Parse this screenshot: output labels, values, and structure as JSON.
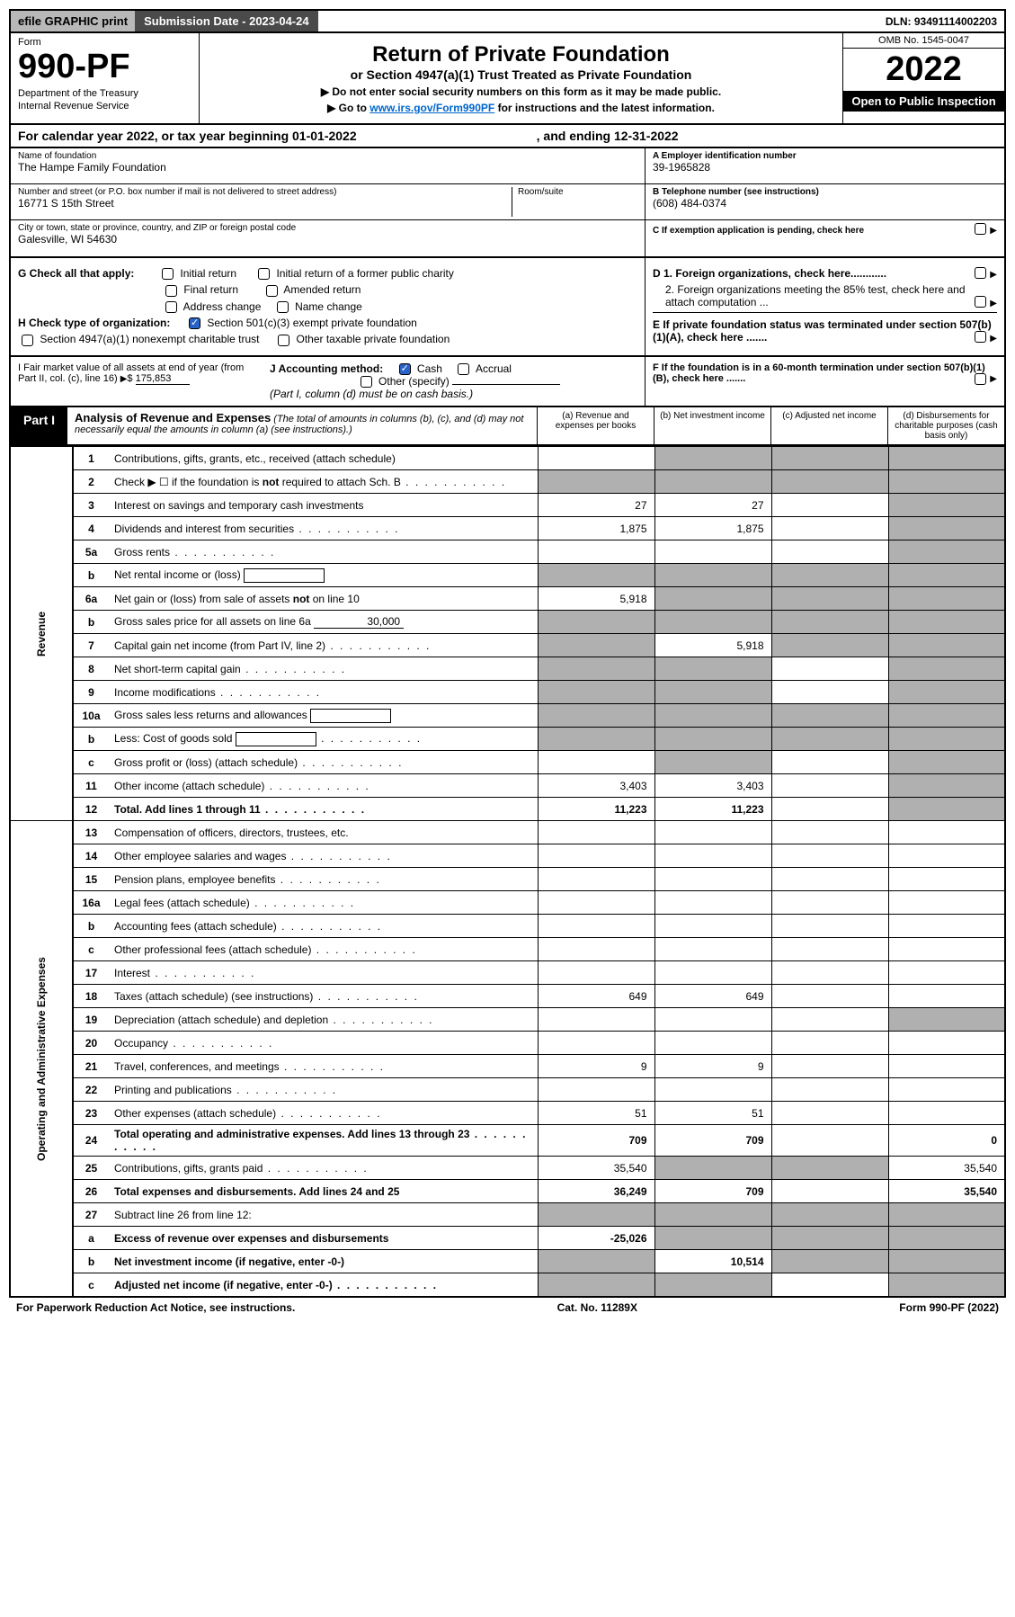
{
  "topbar": {
    "efile": "efile GRAPHIC print",
    "submission_label": "Submission Date - 2023-04-24",
    "dln": "DLN: 93491114002203"
  },
  "header": {
    "form_label": "Form",
    "form_number": "990-PF",
    "dept1": "Department of the Treasury",
    "dept2": "Internal Revenue Service",
    "title": "Return of Private Foundation",
    "subtitle": "or Section 4947(a)(1) Trust Treated as Private Foundation",
    "instr1": "▶ Do not enter social security numbers on this form as it may be made public.",
    "instr2_pre": "▶ Go to ",
    "instr2_link": "www.irs.gov/Form990PF",
    "instr2_post": " for instructions and the latest information.",
    "omb": "OMB No. 1545-0047",
    "year": "2022",
    "inspection": "Open to Public Inspection"
  },
  "calyear": {
    "text": "For calendar year 2022, or tax year beginning 01-01-2022",
    "ending": ", and ending 12-31-2022"
  },
  "entity": {
    "name_label": "Name of foundation",
    "name": "The Hampe Family Foundation",
    "addr_label": "Number and street (or P.O. box number if mail is not delivered to street address)",
    "addr": "16771 S 15th Street",
    "room_label": "Room/suite",
    "city_label": "City or town, state or province, country, and ZIP or foreign postal code",
    "city": "Galesville, WI  54630",
    "a_label": "A Employer identification number",
    "a_value": "39-1965828",
    "b_label": "B Telephone number (see instructions)",
    "b_value": "(608) 484-0374",
    "c_label": "C If exemption application is pending, check here"
  },
  "checks": {
    "g_label": "G Check all that apply:",
    "g1": "Initial return",
    "g2": "Initial return of a former public charity",
    "g3": "Final return",
    "g4": "Amended return",
    "g5": "Address change",
    "g6": "Name change",
    "h_label": "H Check type of organization:",
    "h1": "Section 501(c)(3) exempt private foundation",
    "h2": "Section 4947(a)(1) nonexempt charitable trust",
    "h3": "Other taxable private foundation",
    "d1": "D 1. Foreign organizations, check here............",
    "d2": "2. Foreign organizations meeting the 85% test, check here and attach computation ...",
    "e": "E  If private foundation status was terminated under section 507(b)(1)(A), check here ......."
  },
  "acct": {
    "i_label": "I Fair market value of all assets at end of year (from Part II, col. (c), line 16)",
    "i_value": "175,853",
    "j_label": "J Accounting method:",
    "j_cash": "Cash",
    "j_accrual": "Accrual",
    "j_other": "Other (specify)",
    "j_note": "(Part I, column (d) must be on cash basis.)",
    "f": "F  If the foundation is in a 60-month termination under section 507(b)(1)(B), check here ......."
  },
  "part1": {
    "label": "Part I",
    "title": "Analysis of Revenue and Expenses",
    "title_note": "(The total of amounts in columns (b), (c), and (d) may not necessarily equal the amounts in column (a) (see instructions).)",
    "col_a": "(a)   Revenue and expenses per books",
    "col_b": "(b)   Net investment income",
    "col_c": "(c)   Adjusted net income",
    "col_d": "(d)   Disbursements for charitable purposes (cash basis only)"
  },
  "side_labels": {
    "revenue": "Revenue",
    "expenses": "Operating and Administrative Expenses"
  },
  "rows": [
    {
      "n": "1",
      "desc": "Contributions, gifts, grants, etc., received (attach schedule)",
      "a": "",
      "b": "shaded",
      "c": "shaded",
      "d": "shaded"
    },
    {
      "n": "2",
      "desc": "Check ▶ ☐ if the foundation is not required to attach Sch. B",
      "dots": true,
      "a": "shaded",
      "b": "shaded",
      "c": "shaded",
      "d": "shaded"
    },
    {
      "n": "3",
      "desc": "Interest on savings and temporary cash investments",
      "a": "27",
      "b": "27",
      "c": "",
      "d": "shaded"
    },
    {
      "n": "4",
      "desc": "Dividends and interest from securities",
      "dots": true,
      "a": "1,875",
      "b": "1,875",
      "c": "",
      "d": "shaded"
    },
    {
      "n": "5a",
      "desc": "Gross rents",
      "dots": true,
      "a": "",
      "b": "",
      "c": "",
      "d": "shaded"
    },
    {
      "n": "b",
      "desc": "Net rental income or (loss)",
      "box": true,
      "a": "shaded",
      "b": "shaded",
      "c": "shaded",
      "d": "shaded"
    },
    {
      "n": "6a",
      "desc": "Net gain or (loss) from sale of assets not on line 10",
      "a": "5,918",
      "b": "shaded",
      "c": "shaded",
      "d": "shaded"
    },
    {
      "n": "b",
      "desc": "Gross sales price for all assets on line 6a",
      "underline": "30,000",
      "a": "shaded",
      "b": "shaded",
      "c": "shaded",
      "d": "shaded"
    },
    {
      "n": "7",
      "desc": "Capital gain net income (from Part IV, line 2)",
      "dots": true,
      "a": "shaded",
      "b": "5,918",
      "c": "shaded",
      "d": "shaded"
    },
    {
      "n": "8",
      "desc": "Net short-term capital gain",
      "dots": true,
      "a": "shaded",
      "b": "shaded",
      "c": "",
      "d": "shaded"
    },
    {
      "n": "9",
      "desc": "Income modifications",
      "dots": true,
      "a": "shaded",
      "b": "shaded",
      "c": "",
      "d": "shaded"
    },
    {
      "n": "10a",
      "desc": "Gross sales less returns and allowances",
      "box": true,
      "a": "shaded",
      "b": "shaded",
      "c": "shaded",
      "d": "shaded"
    },
    {
      "n": "b",
      "desc": "Less: Cost of goods sold",
      "dots": true,
      "box": true,
      "a": "shaded",
      "b": "shaded",
      "c": "shaded",
      "d": "shaded"
    },
    {
      "n": "c",
      "desc": "Gross profit or (loss) (attach schedule)",
      "dots": true,
      "a": "",
      "b": "shaded",
      "c": "",
      "d": "shaded"
    },
    {
      "n": "11",
      "desc": "Other income (attach schedule)",
      "dots": true,
      "a": "3,403",
      "b": "3,403",
      "c": "",
      "d": "shaded"
    },
    {
      "n": "12",
      "desc": "Total. Add lines 1 through 11",
      "dots": true,
      "bold": true,
      "a": "11,223",
      "b": "11,223",
      "c": "",
      "d": "shaded"
    },
    {
      "n": "13",
      "desc": "Compensation of officers, directors, trustees, etc.",
      "a": "",
      "b": "",
      "c": "",
      "d": ""
    },
    {
      "n": "14",
      "desc": "Other employee salaries and wages",
      "dots": true,
      "a": "",
      "b": "",
      "c": "",
      "d": ""
    },
    {
      "n": "15",
      "desc": "Pension plans, employee benefits",
      "dots": true,
      "a": "",
      "b": "",
      "c": "",
      "d": ""
    },
    {
      "n": "16a",
      "desc": "Legal fees (attach schedule)",
      "dots": true,
      "a": "",
      "b": "",
      "c": "",
      "d": ""
    },
    {
      "n": "b",
      "desc": "Accounting fees (attach schedule)",
      "dots": true,
      "a": "",
      "b": "",
      "c": "",
      "d": ""
    },
    {
      "n": "c",
      "desc": "Other professional fees (attach schedule)",
      "dots": true,
      "a": "",
      "b": "",
      "c": "",
      "d": ""
    },
    {
      "n": "17",
      "desc": "Interest",
      "dots": true,
      "a": "",
      "b": "",
      "c": "",
      "d": ""
    },
    {
      "n": "18",
      "desc": "Taxes (attach schedule) (see instructions)",
      "dots": true,
      "a": "649",
      "b": "649",
      "c": "",
      "d": ""
    },
    {
      "n": "19",
      "desc": "Depreciation (attach schedule) and depletion",
      "dots": true,
      "a": "",
      "b": "",
      "c": "",
      "d": "shaded"
    },
    {
      "n": "20",
      "desc": "Occupancy",
      "dots": true,
      "a": "",
      "b": "",
      "c": "",
      "d": ""
    },
    {
      "n": "21",
      "desc": "Travel, conferences, and meetings",
      "dots": true,
      "a": "9",
      "b": "9",
      "c": "",
      "d": ""
    },
    {
      "n": "22",
      "desc": "Printing and publications",
      "dots": true,
      "a": "",
      "b": "",
      "c": "",
      "d": ""
    },
    {
      "n": "23",
      "desc": "Other expenses (attach schedule)",
      "dots": true,
      "a": "51",
      "b": "51",
      "c": "",
      "d": ""
    },
    {
      "n": "24",
      "desc": "Total operating and administrative expenses. Add lines 13 through 23",
      "dots": true,
      "bold": true,
      "a": "709",
      "b": "709",
      "c": "",
      "d": "0"
    },
    {
      "n": "25",
      "desc": "Contributions, gifts, grants paid",
      "dots": true,
      "a": "35,540",
      "b": "shaded",
      "c": "shaded",
      "d": "35,540"
    },
    {
      "n": "26",
      "desc": "Total expenses and disbursements. Add lines 24 and 25",
      "bold": true,
      "a": "36,249",
      "b": "709",
      "c": "",
      "d": "35,540"
    },
    {
      "n": "27",
      "desc": "Subtract line 26 from line 12:",
      "a": "shaded",
      "b": "shaded",
      "c": "shaded",
      "d": "shaded"
    },
    {
      "n": "a",
      "desc": "Excess of revenue over expenses and disbursements",
      "bold": true,
      "a": "-25,026",
      "b": "shaded",
      "c": "shaded",
      "d": "shaded"
    },
    {
      "n": "b",
      "desc": "Net investment income (if negative, enter -0-)",
      "bold": true,
      "a": "shaded",
      "b": "10,514",
      "c": "shaded",
      "d": "shaded"
    },
    {
      "n": "c",
      "desc": "Adjusted net income (if negative, enter -0-)",
      "dots": true,
      "bold": true,
      "a": "shaded",
      "b": "shaded",
      "c": "",
      "d": "shaded"
    }
  ],
  "footer": {
    "left": "For Paperwork Reduction Act Notice, see instructions.",
    "mid": "Cat. No. 11289X",
    "right": "Form 990-PF (2022)"
  }
}
